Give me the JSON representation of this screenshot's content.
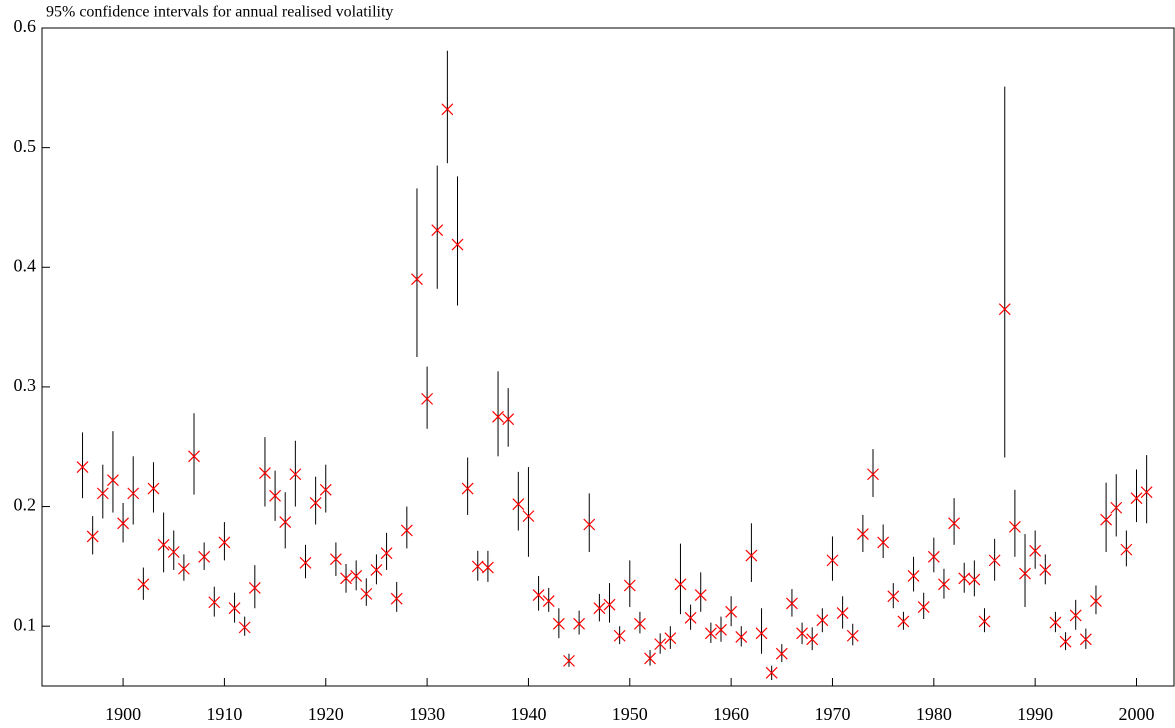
{
  "chart_data": {
    "type": "errorbar",
    "title": "95% confidence intervals for annual realised volatility",
    "x": [
      1896,
      1897,
      1898,
      1899,
      1900,
      1901,
      1902,
      1903,
      1904,
      1905,
      1906,
      1907,
      1908,
      1909,
      1910,
      1911,
      1912,
      1913,
      1914,
      1915,
      1916,
      1917,
      1918,
      1919,
      1920,
      1921,
      1922,
      1923,
      1924,
      1925,
      1926,
      1927,
      1928,
      1929,
      1930,
      1931,
      1932,
      1933,
      1934,
      1935,
      1936,
      1937,
      1938,
      1939,
      1940,
      1941,
      1942,
      1943,
      1944,
      1945,
      1946,
      1947,
      1948,
      1949,
      1950,
      1951,
      1952,
      1953,
      1954,
      1955,
      1956,
      1957,
      1958,
      1959,
      1960,
      1961,
      1962,
      1963,
      1964,
      1965,
      1966,
      1967,
      1968,
      1969,
      1970,
      1971,
      1972,
      1973,
      1974,
      1975,
      1976,
      1977,
      1978,
      1979,
      1980,
      1981,
      1982,
      1983,
      1984,
      1985,
      1986,
      1987,
      1988,
      1989,
      1990,
      1991,
      1992,
      1993,
      1994,
      1995,
      1996,
      1997,
      1998,
      1999,
      2000,
      2001
    ],
    "values": [
      0.233,
      0.175,
      0.211,
      0.222,
      0.186,
      0.211,
      0.135,
      0.215,
      0.168,
      0.162,
      0.148,
      0.242,
      0.158,
      0.12,
      0.17,
      0.115,
      0.099,
      0.132,
      0.228,
      0.209,
      0.187,
      0.227,
      0.153,
      0.203,
      0.214,
      0.156,
      0.14,
      0.142,
      0.127,
      0.147,
      0.161,
      0.123,
      0.18,
      0.39,
      0.29,
      0.431,
      0.532,
      0.419,
      0.215,
      0.15,
      0.149,
      0.275,
      0.273,
      0.202,
      0.192,
      0.126,
      0.121,
      0.102,
      0.071,
      0.102,
      0.185,
      0.115,
      0.118,
      0.092,
      0.134,
      0.102,
      0.073,
      0.085,
      0.09,
      0.135,
      0.107,
      0.126,
      0.094,
      0.097,
      0.112,
      0.091,
      0.159,
      0.094,
      0.061,
      0.077,
      0.119,
      0.094,
      0.089,
      0.105,
      0.155,
      0.111,
      0.092,
      0.177,
      0.227,
      0.17,
      0.125,
      0.104,
      0.142,
      0.116,
      0.158,
      0.135,
      0.186,
      0.14,
      0.139,
      0.104,
      0.155,
      0.365,
      0.183,
      0.144,
      0.163,
      0.147,
      0.103,
      0.087,
      0.109,
      0.089,
      0.121,
      0.189,
      0.199,
      0.164,
      0.207,
      0.212
    ],
    "lower": [
      0.207,
      0.16,
      0.19,
      0.195,
      0.17,
      0.185,
      0.122,
      0.195,
      0.145,
      0.147,
      0.138,
      0.21,
      0.147,
      0.108,
      0.155,
      0.103,
      0.092,
      0.115,
      0.2,
      0.188,
      0.165,
      0.2,
      0.14,
      0.185,
      0.195,
      0.142,
      0.128,
      0.13,
      0.117,
      0.135,
      0.147,
      0.112,
      0.165,
      0.325,
      0.265,
      0.382,
      0.487,
      0.368,
      0.193,
      0.138,
      0.137,
      0.242,
      0.25,
      0.18,
      0.158,
      0.113,
      0.112,
      0.09,
      0.066,
      0.093,
      0.162,
      0.104,
      0.103,
      0.085,
      0.116,
      0.094,
      0.067,
      0.077,
      0.081,
      0.11,
      0.097,
      0.112,
      0.086,
      0.087,
      0.1,
      0.083,
      0.137,
      0.077,
      0.055,
      0.07,
      0.108,
      0.085,
      0.08,
      0.095,
      0.138,
      0.098,
      0.084,
      0.162,
      0.208,
      0.157,
      0.115,
      0.097,
      0.129,
      0.106,
      0.145,
      0.123,
      0.168,
      0.128,
      0.125,
      0.095,
      0.138,
      0.241,
      0.158,
      0.116,
      0.148,
      0.135,
      0.095,
      0.08,
      0.097,
      0.081,
      0.11,
      0.162,
      0.175,
      0.15,
      0.187,
      0.186
    ],
    "upper": [
      0.262,
      0.192,
      0.235,
      0.263,
      0.203,
      0.242,
      0.149,
      0.237,
      0.195,
      0.18,
      0.16,
      0.278,
      0.17,
      0.133,
      0.187,
      0.128,
      0.108,
      0.151,
      0.258,
      0.23,
      0.212,
      0.255,
      0.168,
      0.225,
      0.235,
      0.17,
      0.152,
      0.155,
      0.14,
      0.16,
      0.178,
      0.137,
      0.2,
      0.466,
      0.317,
      0.485,
      0.581,
      0.476,
      0.241,
      0.163,
      0.163,
      0.313,
      0.299,
      0.229,
      0.233,
      0.142,
      0.132,
      0.115,
      0.077,
      0.113,
      0.211,
      0.127,
      0.136,
      0.1,
      0.155,
      0.112,
      0.08,
      0.094,
      0.1,
      0.169,
      0.118,
      0.145,
      0.103,
      0.108,
      0.125,
      0.1,
      0.186,
      0.115,
      0.067,
      0.085,
      0.131,
      0.103,
      0.099,
      0.115,
      0.175,
      0.125,
      0.102,
      0.193,
      0.248,
      0.185,
      0.136,
      0.112,
      0.158,
      0.128,
      0.174,
      0.148,
      0.207,
      0.153,
      0.155,
      0.115,
      0.173,
      0.551,
      0.214,
      0.177,
      0.18,
      0.16,
      0.112,
      0.095,
      0.122,
      0.098,
      0.134,
      0.22,
      0.227,
      0.18,
      0.231,
      0.243
    ],
    "color": "#ff0000",
    "bar_color": "#000000",
    "xlim": [
      1892,
      2003.7
    ],
    "xticks": [
      1900,
      1910,
      1920,
      1930,
      1940,
      1950,
      1960,
      1970,
      1980,
      1990,
      2000
    ],
    "ylim": [
      0.05,
      0.6
    ],
    "yticks": [
      0.1,
      0.2,
      0.3,
      0.4,
      0.5,
      0.6
    ],
    "grid": false
  }
}
